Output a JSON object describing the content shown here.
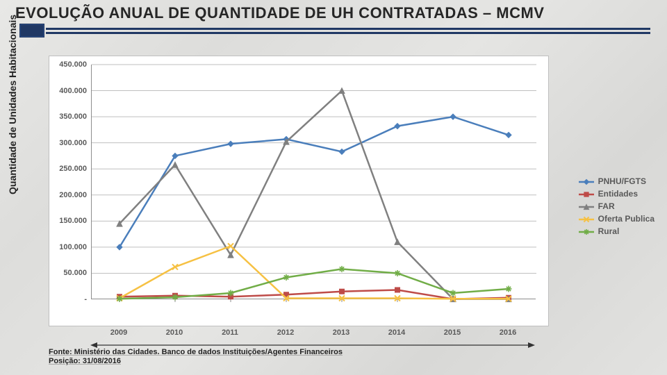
{
  "title": "EVOLUÇÃO ANUAL DE QUANTIDADE DE UH CONTRATADAS – MCMV",
  "y_axis_label": "Quantidade de Unidades Habitacionais",
  "source_line1": "Fonte: Ministério das Cidades. Banco de dados Instituições/Agentes Financeiros",
  "source_line2": "Posição: 31/08/2016",
  "chart": {
    "type": "line",
    "background_color": "#ffffff",
    "grid_color": "#bfbfbf",
    "axis_color": "#8c8c8c",
    "label_color": "#595959",
    "title_fontsize": 22,
    "label_fontsize": 11,
    "ylabel_fontsize": 14,
    "x_categories": [
      "2009",
      "2010",
      "2011",
      "2012",
      "2013",
      "2014",
      "2015",
      "2016"
    ],
    "ylim": [
      0,
      450000
    ],
    "ytick_step": 50000,
    "ytick_labels": [
      "-",
      "50.000",
      "100.000",
      "150.000",
      "200.000",
      "250.000",
      "300.000",
      "350.000",
      "400.000",
      "450.000"
    ],
    "series": [
      {
        "name": "PNHU/FGTS",
        "color": "#4a7ebb",
        "marker": "diamond",
        "line_width": 2.5,
        "marker_size": 8,
        "values": [
          100000,
          275000,
          298000,
          307000,
          283000,
          332000,
          350000,
          315000
        ]
      },
      {
        "name": "Entidades",
        "color": "#be4b48",
        "marker": "square",
        "line_width": 2.5,
        "marker_size": 7,
        "values": [
          5000,
          7000,
          5000,
          9000,
          15000,
          18000,
          500,
          3000
        ]
      },
      {
        "name": "FAR",
        "color": "#98b954",
        "display_color": "#808080",
        "marker": "triangle",
        "line_width": 2.5,
        "marker_size": 8,
        "values": [
          145000,
          258000,
          85000,
          302000,
          400000,
          110000,
          500,
          500
        ]
      },
      {
        "name": "Oferta Publica",
        "color": "#f6c143",
        "marker": "x",
        "line_width": 2.5,
        "marker_size": 8,
        "values": [
          2000,
          62000,
          102000,
          2000,
          2000,
          2000,
          1000,
          1000
        ]
      },
      {
        "name": "Rural",
        "color": "#71ad47",
        "marker": "asterisk",
        "line_width": 2.5,
        "marker_size": 9,
        "values": [
          1000,
          4000,
          12000,
          42000,
          58000,
          50000,
          12000,
          20000
        ]
      }
    ],
    "legend": {
      "position": "right",
      "fontsize": 12,
      "labels": [
        "PNHU/FGTS",
        "Entidades",
        "FAR",
        "Oferta Publica",
        "Rural"
      ]
    }
  }
}
